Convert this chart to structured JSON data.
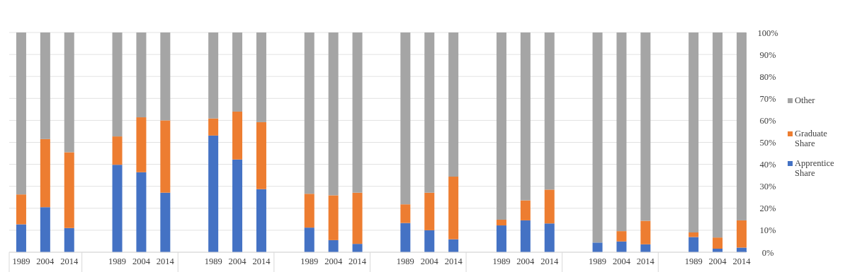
{
  "chart_data": {
    "type": "bar",
    "stacked": true,
    "categories": [
      "1989",
      "2004",
      "2014",
      null,
      "1989",
      "2004",
      "2014",
      null,
      "1989",
      "2004",
      "2014",
      null,
      "1989",
      "2004",
      "2014",
      null,
      "1989",
      "2004",
      "2014",
      null,
      "1989",
      "2004",
      "2014",
      null,
      "1989",
      "2004",
      "2014",
      null,
      "1989",
      "2004",
      "2014"
    ],
    "series": [
      {
        "name": "Apprentice Share",
        "color": "#4472c4",
        "values": [
          12.7,
          20.5,
          11,
          null,
          39.8,
          36.4,
          27.1,
          null,
          53.1,
          42.2,
          28.7,
          null,
          11.2,
          5.5,
          3.8,
          null,
          13.3,
          10,
          5.9,
          null,
          12.2,
          14.5,
          13.1,
          null,
          4.4,
          4.9,
          3.6,
          null,
          6.9,
          1.6,
          2.1
        ]
      },
      {
        "name": "Graduate Share",
        "color": "#ed7d31",
        "values": [
          13.6,
          31,
          34.5,
          null,
          12.9,
          25,
          32.9,
          null,
          7.8,
          21.8,
          30.5,
          null,
          15.4,
          20.4,
          23.3,
          null,
          8.5,
          17.1,
          28.5,
          null,
          2.6,
          9.1,
          15.4,
          null,
          0,
          4.7,
          10.7,
          null,
          2.1,
          5.1,
          12.4
        ]
      },
      {
        "name": "Other",
        "color": "#a5a5a5",
        "values": [
          73.7,
          48.5,
          54.5,
          null,
          47.3,
          38.6,
          40,
          null,
          39.1,
          36,
          40.8,
          null,
          73.4,
          74.1,
          72.9,
          null,
          78.2,
          72.9,
          65.6,
          null,
          85.2,
          76.4,
          71.5,
          null,
          95.6,
          90.4,
          85.7,
          null,
          91,
          93.3,
          85.5
        ]
      }
    ],
    "ylim": [
      0,
      100
    ],
    "yticks": [
      {
        "value": 0,
        "label": "0%"
      },
      {
        "value": 10,
        "label": "10%"
      },
      {
        "value": 20,
        "label": "20%"
      },
      {
        "value": 30,
        "label": "30%"
      },
      {
        "value": 40,
        "label": "40%"
      },
      {
        "value": 50,
        "label": "50%"
      },
      {
        "value": 60,
        "label": "60%"
      },
      {
        "value": 70,
        "label": "70%"
      },
      {
        "value": 80,
        "label": "80%"
      },
      {
        "value": 90,
        "label": "90%"
      },
      {
        "value": 100,
        "label": "100%"
      }
    ],
    "grid": "y",
    "legend": "right"
  }
}
